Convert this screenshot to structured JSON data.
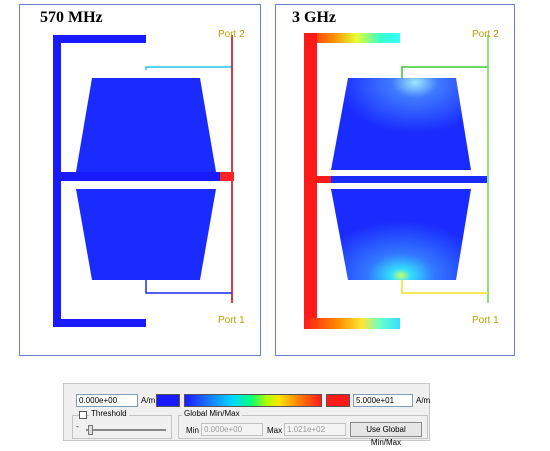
{
  "panels": [
    {
      "label": "570 MHz",
      "port_top": "Port 2",
      "port_bottom": "Port 1"
    },
    {
      "label": "3 GHz",
      "port_top": "Port 2",
      "port_bottom": "Port 1"
    }
  ],
  "colorbar": {
    "min_value": "0.000e+00",
    "max_value": "5.000e+01",
    "unit": "A/m",
    "low_color": "#1a1aff",
    "high_color": "#ff1a1a"
  },
  "threshold": {
    "label": "Threshold",
    "checked": false,
    "slider_value": "-"
  },
  "global_minmax": {
    "title": "Global Min/Max",
    "min_label": "Min",
    "min_value": "0.000e+00",
    "max_label": "Max",
    "max_value": "1.021e+02",
    "button_label": "Use Global Min/Max"
  }
}
